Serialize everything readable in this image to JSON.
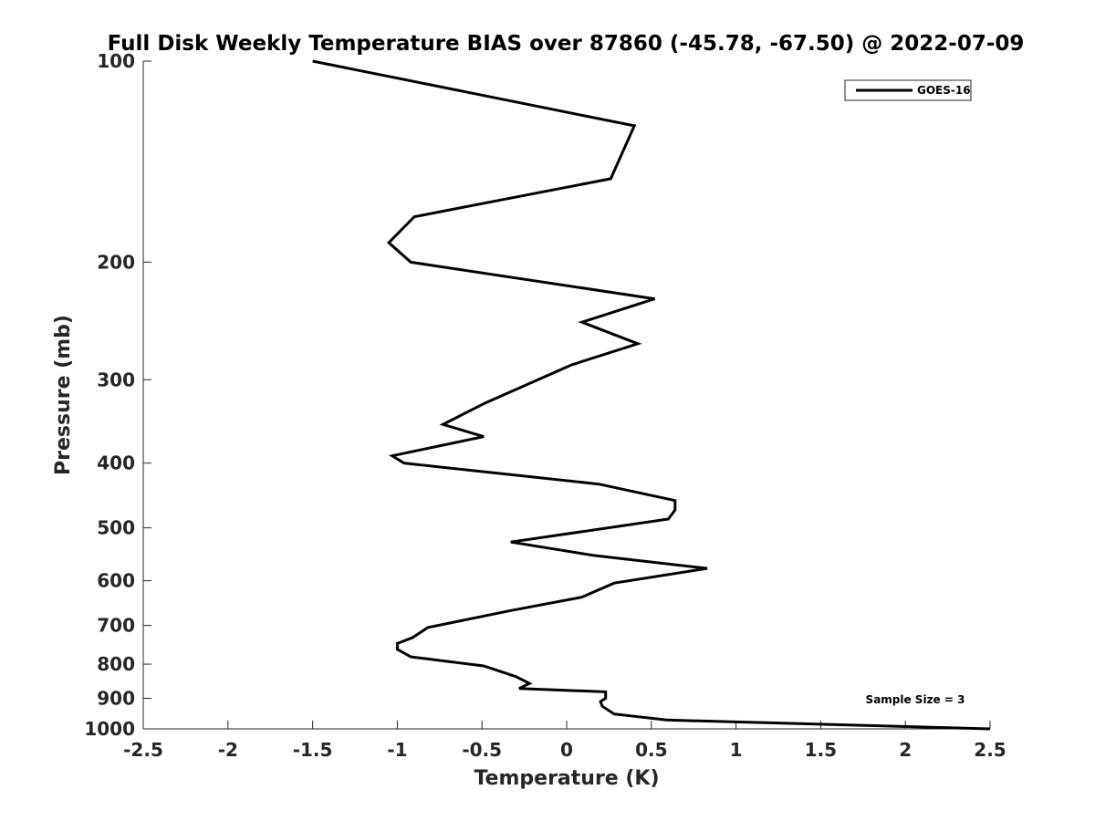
{
  "chart_data": {
    "type": "line",
    "title": "Full Disk Weekly Temperature BIAS over 87860 (-45.78, -67.50) @ 2022-07-09",
    "xlabel": "Temperature (K)",
    "ylabel": "Pressure (mb)",
    "xlim": [
      -2.5,
      2.5
    ],
    "ylim": [
      100,
      1000
    ],
    "yscale": "log",
    "ydirection": "reverse",
    "grid": false,
    "legend_position": "top-right",
    "x_ticks": [
      -2.5,
      -2,
      -1.5,
      -1,
      -0.5,
      0,
      0.5,
      1,
      1.5,
      2,
      2.5
    ],
    "x_tick_labels": [
      "-2.5",
      "-2",
      "-1.5",
      "-1",
      "-0.5",
      "0",
      "0.5",
      "1",
      "1.5",
      "2",
      "2.5"
    ],
    "y_ticks": [
      100,
      200,
      300,
      400,
      500,
      600,
      700,
      800,
      900,
      1000
    ],
    "y_tick_labels": [
      "100",
      "200",
      "300",
      "400",
      "500",
      "600",
      "700",
      "800",
      "900",
      "1000"
    ],
    "annotation": "Sample Size = 3",
    "series": [
      {
        "name": "GOES-16",
        "color": "#000000",
        "x": [
          -1.5,
          0.4,
          0.26,
          -0.9,
          -1.05,
          -0.92,
          0.52,
          0.09,
          0.42,
          0.03,
          -0.48,
          -0.73,
          -0.49,
          -1.03,
          -0.96,
          0.19,
          0.64,
          0.64,
          0.6,
          -0.33,
          0.16,
          0.83,
          0.28,
          0.09,
          -0.33,
          -0.82,
          -0.91,
          -1.0,
          -1.0,
          -0.92,
          -0.49,
          -0.3,
          -0.22,
          -0.28,
          0.23,
          0.23,
          0.2,
          0.21,
          0.28,
          0.59,
          2.5
        ],
        "y": [
          100,
          125,
          150,
          171,
          187,
          200,
          227,
          246,
          265,
          285,
          325,
          350,
          365,
          390,
          400,
          430,
          455,
          470,
          485,
          525,
          550,
          575,
          605,
          635,
          665,
          705,
          730,
          745,
          760,
          780,
          805,
          835,
          855,
          870,
          880,
          900,
          910,
          925,
          950,
          970,
          1000
        ]
      }
    ]
  }
}
